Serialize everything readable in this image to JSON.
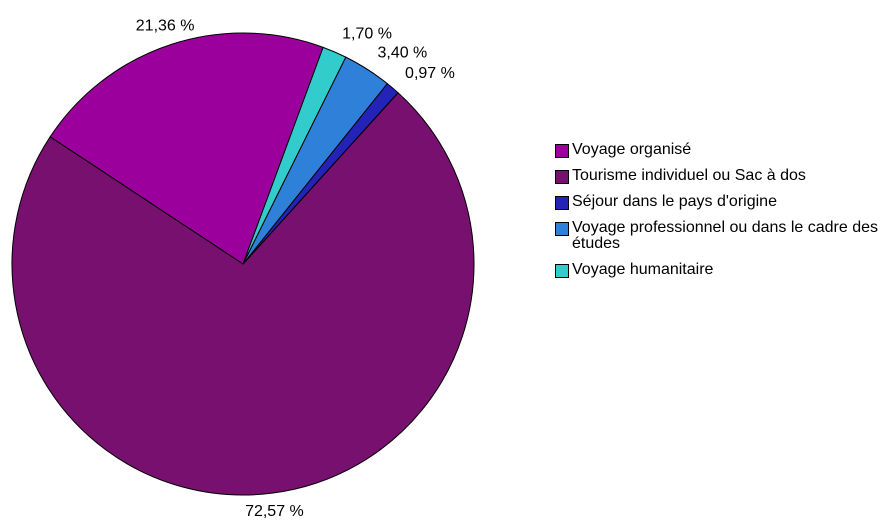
{
  "chart_data": {
    "type": "pie",
    "categories": [
      "Voyage organisé",
      "Tourisme individuel ou Sac à dos",
      "Séjour dans le pays d'origine",
      "Voyage professionnel ou dans le cadre des études",
      "Voyage humanitaire"
    ],
    "values": [
      21.36,
      72.57,
      0.97,
      3.4,
      1.7
    ],
    "value_labels": [
      "21,36 %",
      "72,57 %",
      "0,97 %",
      "3,40 %",
      "1,70 %"
    ],
    "colors": [
      "#9c009c",
      "#77106f",
      "#2323b8",
      "#2f80d8",
      "#33cccc"
    ],
    "legend": "right"
  }
}
